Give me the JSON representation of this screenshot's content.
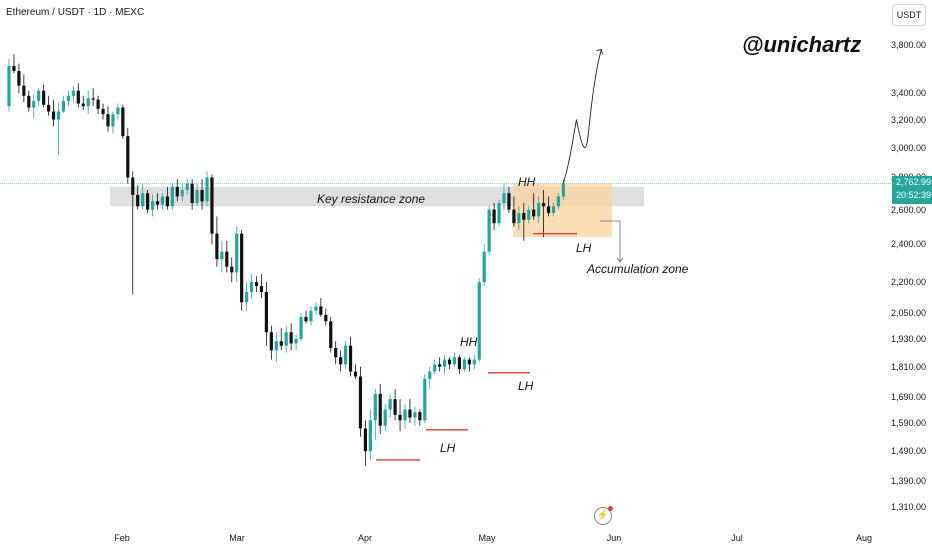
{
  "header": {
    "pair": "Ethereum / USDT · 1D · MEXC",
    "watermark": "@unichartz",
    "currency": "USDT"
  },
  "colors": {
    "up": "#26a69a",
    "down": "#111111",
    "zone": "#d6d6d6",
    "accumulation": "#f7c98c",
    "support_line": "#e53935",
    "price_line": "#26a69a"
  },
  "icons": {
    "alert": "lightning-icon"
  },
  "last_price": {
    "price": "2,762.99",
    "countdown": "20:52:39",
    "value": 2762.99
  },
  "annotations": {
    "key_resistance": "Key resistance zone",
    "accumulation": "Accumulation zone",
    "hh1": "HH",
    "hh2": "HH",
    "lh1": "LH",
    "lh2": "LH",
    "lh3": "LH"
  },
  "chart_data": {
    "type": "candlestick",
    "symbol": "Ethereum / USDT",
    "interval": "1D",
    "exchange": "MEXC",
    "yaxis": {
      "scale": "log",
      "ticks": [
        3800,
        3400,
        3200,
        3000,
        2800,
        2600,
        2400,
        2200,
        2050,
        1930,
        1810,
        1690,
        1590,
        1490,
        1390,
        1310
      ],
      "tick_labels": [
        "3,800.00",
        "3,400.00",
        "3,200.00",
        "3,000.00",
        "2,800.00",
        "2,600.00",
        "2,400.00",
        "2,200.00",
        "2,050.00",
        "1,930.00",
        "1,810.00",
        "1,690.00",
        "1,590.00",
        "1,490.00",
        "1,390.00",
        "1,310.00"
      ]
    },
    "xaxis": {
      "ticks": [
        "Feb",
        "Mar",
        "Apr",
        "May",
        "Jun",
        "Jul",
        "Aug"
      ]
    },
    "key_resistance_zone": [
      2620,
      2740
    ],
    "accumulation_zone": [
      2440,
      2760
    ],
    "projection": [
      2762.99,
      2900,
      3200,
      3100,
      3760
    ],
    "candles": [
      [
        3300,
        3680,
        3260,
        3620
      ],
      [
        3620,
        3720,
        3560,
        3580
      ],
      [
        3580,
        3640,
        3400,
        3460
      ],
      [
        3460,
        3550,
        3330,
        3380
      ],
      [
        3380,
        3420,
        3260,
        3290
      ],
      [
        3290,
        3390,
        3210,
        3340
      ],
      [
        3340,
        3440,
        3300,
        3420
      ],
      [
        3420,
        3470,
        3290,
        3310
      ],
      [
        3310,
        3380,
        3230,
        3260
      ],
      [
        3260,
        3350,
        3150,
        3200
      ],
      [
        3200,
        3330,
        2950,
        3260
      ],
      [
        3260,
        3380,
        3250,
        3340
      ],
      [
        3340,
        3420,
        3300,
        3380
      ],
      [
        3380,
        3460,
        3330,
        3420
      ],
      [
        3420,
        3480,
        3290,
        3320
      ],
      [
        3320,
        3380,
        3270,
        3300
      ],
      [
        3300,
        3420,
        3240,
        3360
      ],
      [
        3360,
        3440,
        3300,
        3350
      ],
      [
        3350,
        3380,
        3240,
        3280
      ],
      [
        3280,
        3320,
        3200,
        3240
      ],
      [
        3240,
        3300,
        3110,
        3150
      ],
      [
        3150,
        3260,
        3100,
        3240
      ],
      [
        3240,
        3320,
        3200,
        3290
      ],
      [
        3290,
        3310,
        3060,
        3080
      ],
      [
        3080,
        3140,
        2760,
        2800
      ],
      [
        2800,
        2840,
        2140,
        2690
      ],
      [
        2690,
        2750,
        2600,
        2620
      ],
      [
        2620,
        2760,
        2600,
        2700
      ],
      [
        2700,
        2720,
        2580,
        2600
      ],
      [
        2600,
        2690,
        2560,
        2650
      ],
      [
        2650,
        2700,
        2600,
        2630
      ],
      [
        2630,
        2700,
        2600,
        2680
      ],
      [
        2680,
        2740,
        2600,
        2620
      ],
      [
        2620,
        2760,
        2600,
        2740
      ],
      [
        2740,
        2790,
        2650,
        2680
      ],
      [
        2680,
        2760,
        2650,
        2720
      ],
      [
        2720,
        2790,
        2690,
        2760
      ],
      [
        2760,
        2790,
        2600,
        2640
      ],
      [
        2640,
        2760,
        2620,
        2720
      ],
      [
        2720,
        2790,
        2600,
        2650
      ],
      [
        2650,
        2840,
        2620,
        2800
      ],
      [
        2800,
        2820,
        2400,
        2460
      ],
      [
        2460,
        2560,
        2280,
        2320
      ],
      [
        2320,
        2420,
        2250,
        2360
      ],
      [
        2360,
        2420,
        2250,
        2280
      ],
      [
        2280,
        2330,
        2200,
        2250
      ],
      [
        2250,
        2500,
        2200,
        2460
      ],
      [
        2460,
        2480,
        2060,
        2100
      ],
      [
        2100,
        2200,
        2060,
        2150
      ],
      [
        2150,
        2240,
        2120,
        2200
      ],
      [
        2200,
        2230,
        2150,
        2180
      ],
      [
        2180,
        2240,
        2120,
        2150
      ],
      [
        2150,
        2200,
        1900,
        1960
      ],
      [
        1960,
        1990,
        1840,
        1880
      ],
      [
        1880,
        1960,
        1830,
        1920
      ],
      [
        1920,
        1980,
        1880,
        1900
      ],
      [
        1900,
        1990,
        1870,
        1960
      ],
      [
        1960,
        2000,
        1880,
        1910
      ],
      [
        1910,
        1950,
        1880,
        1930
      ],
      [
        1930,
        2050,
        1920,
        2030
      ],
      [
        2030,
        2060,
        2000,
        2010
      ],
      [
        2010,
        2080,
        1990,
        2060
      ],
      [
        2060,
        2100,
        2040,
        2080
      ],
      [
        2080,
        2120,
        2030,
        2040
      ],
      [
        2040,
        2070,
        1990,
        2010
      ],
      [
        2010,
        2030,
        1870,
        1890
      ],
      [
        1890,
        1920,
        1820,
        1850
      ],
      [
        1850,
        1880,
        1790,
        1820
      ],
      [
        1820,
        1920,
        1800,
        1900
      ],
      [
        1900,
        1940,
        1770,
        1790
      ],
      [
        1790,
        1820,
        1760,
        1770
      ],
      [
        1770,
        1810,
        1540,
        1570
      ],
      [
        1570,
        1600,
        1440,
        1490
      ],
      [
        1490,
        1640,
        1460,
        1600
      ],
      [
        1600,
        1720,
        1530,
        1700
      ],
      [
        1700,
        1740,
        1550,
        1580
      ],
      [
        1580,
        1660,
        1560,
        1640
      ],
      [
        1640,
        1700,
        1610,
        1680
      ],
      [
        1680,
        1720,
        1600,
        1620
      ],
      [
        1620,
        1680,
        1560,
        1600
      ],
      [
        1600,
        1660,
        1570,
        1640
      ],
      [
        1640,
        1680,
        1590,
        1610
      ],
      [
        1610,
        1650,
        1580,
        1630
      ],
      [
        1630,
        1640,
        1580,
        1600
      ],
      [
        1600,
        1780,
        1590,
        1760
      ],
      [
        1760,
        1810,
        1720,
        1790
      ],
      [
        1790,
        1840,
        1780,
        1820
      ],
      [
        1820,
        1850,
        1790,
        1810
      ],
      [
        1810,
        1860,
        1780,
        1840
      ],
      [
        1840,
        1850,
        1800,
        1820
      ],
      [
        1820,
        1870,
        1810,
        1850
      ],
      [
        1850,
        1860,
        1780,
        1800
      ],
      [
        1800,
        1850,
        1790,
        1840
      ],
      [
        1840,
        1850,
        1790,
        1820
      ],
      [
        1820,
        1860,
        1800,
        1840
      ],
      [
        1840,
        2220,
        1830,
        2200
      ],
      [
        2200,
        2400,
        2180,
        2360
      ],
      [
        2360,
        2620,
        2340,
        2600
      ],
      [
        2600,
        2640,
        2480,
        2520
      ],
      [
        2520,
        2660,
        2500,
        2640
      ],
      [
        2640,
        2760,
        2600,
        2700
      ],
      [
        2700,
        2740,
        2580,
        2600
      ],
      [
        2600,
        2680,
        2500,
        2520
      ],
      [
        2520,
        2620,
        2480,
        2580
      ],
      [
        2580,
        2640,
        2420,
        2540
      ],
      [
        2540,
        2620,
        2520,
        2600
      ],
      [
        2600,
        2700,
        2540,
        2560
      ],
      [
        2560,
        2680,
        2520,
        2640
      ],
      [
        2640,
        2720,
        2440,
        2620
      ],
      [
        2620,
        2680,
        2560,
        2580
      ],
      [
        2580,
        2640,
        2560,
        2620
      ],
      [
        2620,
        2700,
        2600,
        2680
      ],
      [
        2680,
        2790,
        2660,
        2763
      ]
    ]
  }
}
